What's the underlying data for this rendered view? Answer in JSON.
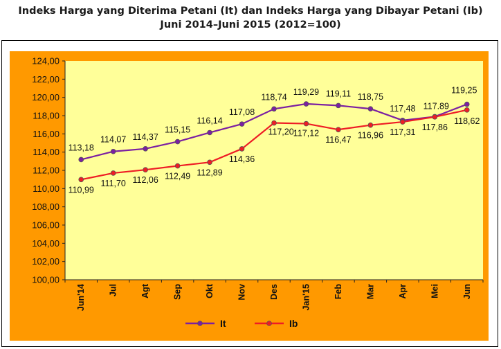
{
  "chart_data": {
    "type": "line",
    "title": "Indeks Harga yang Diterima Petani (It) dan Indeks Harga yang Dibayar Petani (Ib)",
    "subtitle": "Juni 2014–Juni 2015 (2012=100)",
    "categories": [
      "Jun'14",
      "Jul",
      "Agt",
      "Sep",
      "Okt",
      "Nov",
      "Des",
      "Jan'15",
      "Feb",
      "Mar",
      "Apr",
      "Mei",
      "Jun"
    ],
    "series": [
      {
        "name": "It",
        "values": [
          113.18,
          114.07,
          114.37,
          115.15,
          116.14,
          117.08,
          118.74,
          119.29,
          119.11,
          118.75,
          117.48,
          117.89,
          119.25
        ],
        "labels": [
          "113,18",
          "114,07",
          "114,37",
          "115,15",
          "116,14",
          "117,08",
          "118,74",
          "119,29",
          "119,11",
          "118,75",
          "117,48",
          "117.89",
          "119,25"
        ],
        "color": "#7b1fa2"
      },
      {
        "name": "Ib",
        "values": [
          110.99,
          111.7,
          112.06,
          112.49,
          112.89,
          114.36,
          117.2,
          117.12,
          116.47,
          116.96,
          117.31,
          117.86,
          118.62
        ],
        "labels": [
          "110,99",
          "111,70",
          "112,06",
          "112,49",
          "112,89",
          "114,36",
          "117,20",
          "117,12",
          "116,47",
          "116,96",
          "117,31",
          "117,86",
          "118,62"
        ],
        "color": "#ee1c25"
      }
    ],
    "ylim": [
      100,
      124
    ],
    "yticks": [
      "100,00",
      "102,00",
      "104,00",
      "106,00",
      "108,00",
      "110,00",
      "112,00",
      "114,00",
      "116,00",
      "118,00",
      "120,00",
      "122,00",
      "124,00"
    ],
    "grid": false,
    "legend_position": "bottom",
    "plot_background": "#ffff99",
    "frame_background": "#ff9900"
  }
}
